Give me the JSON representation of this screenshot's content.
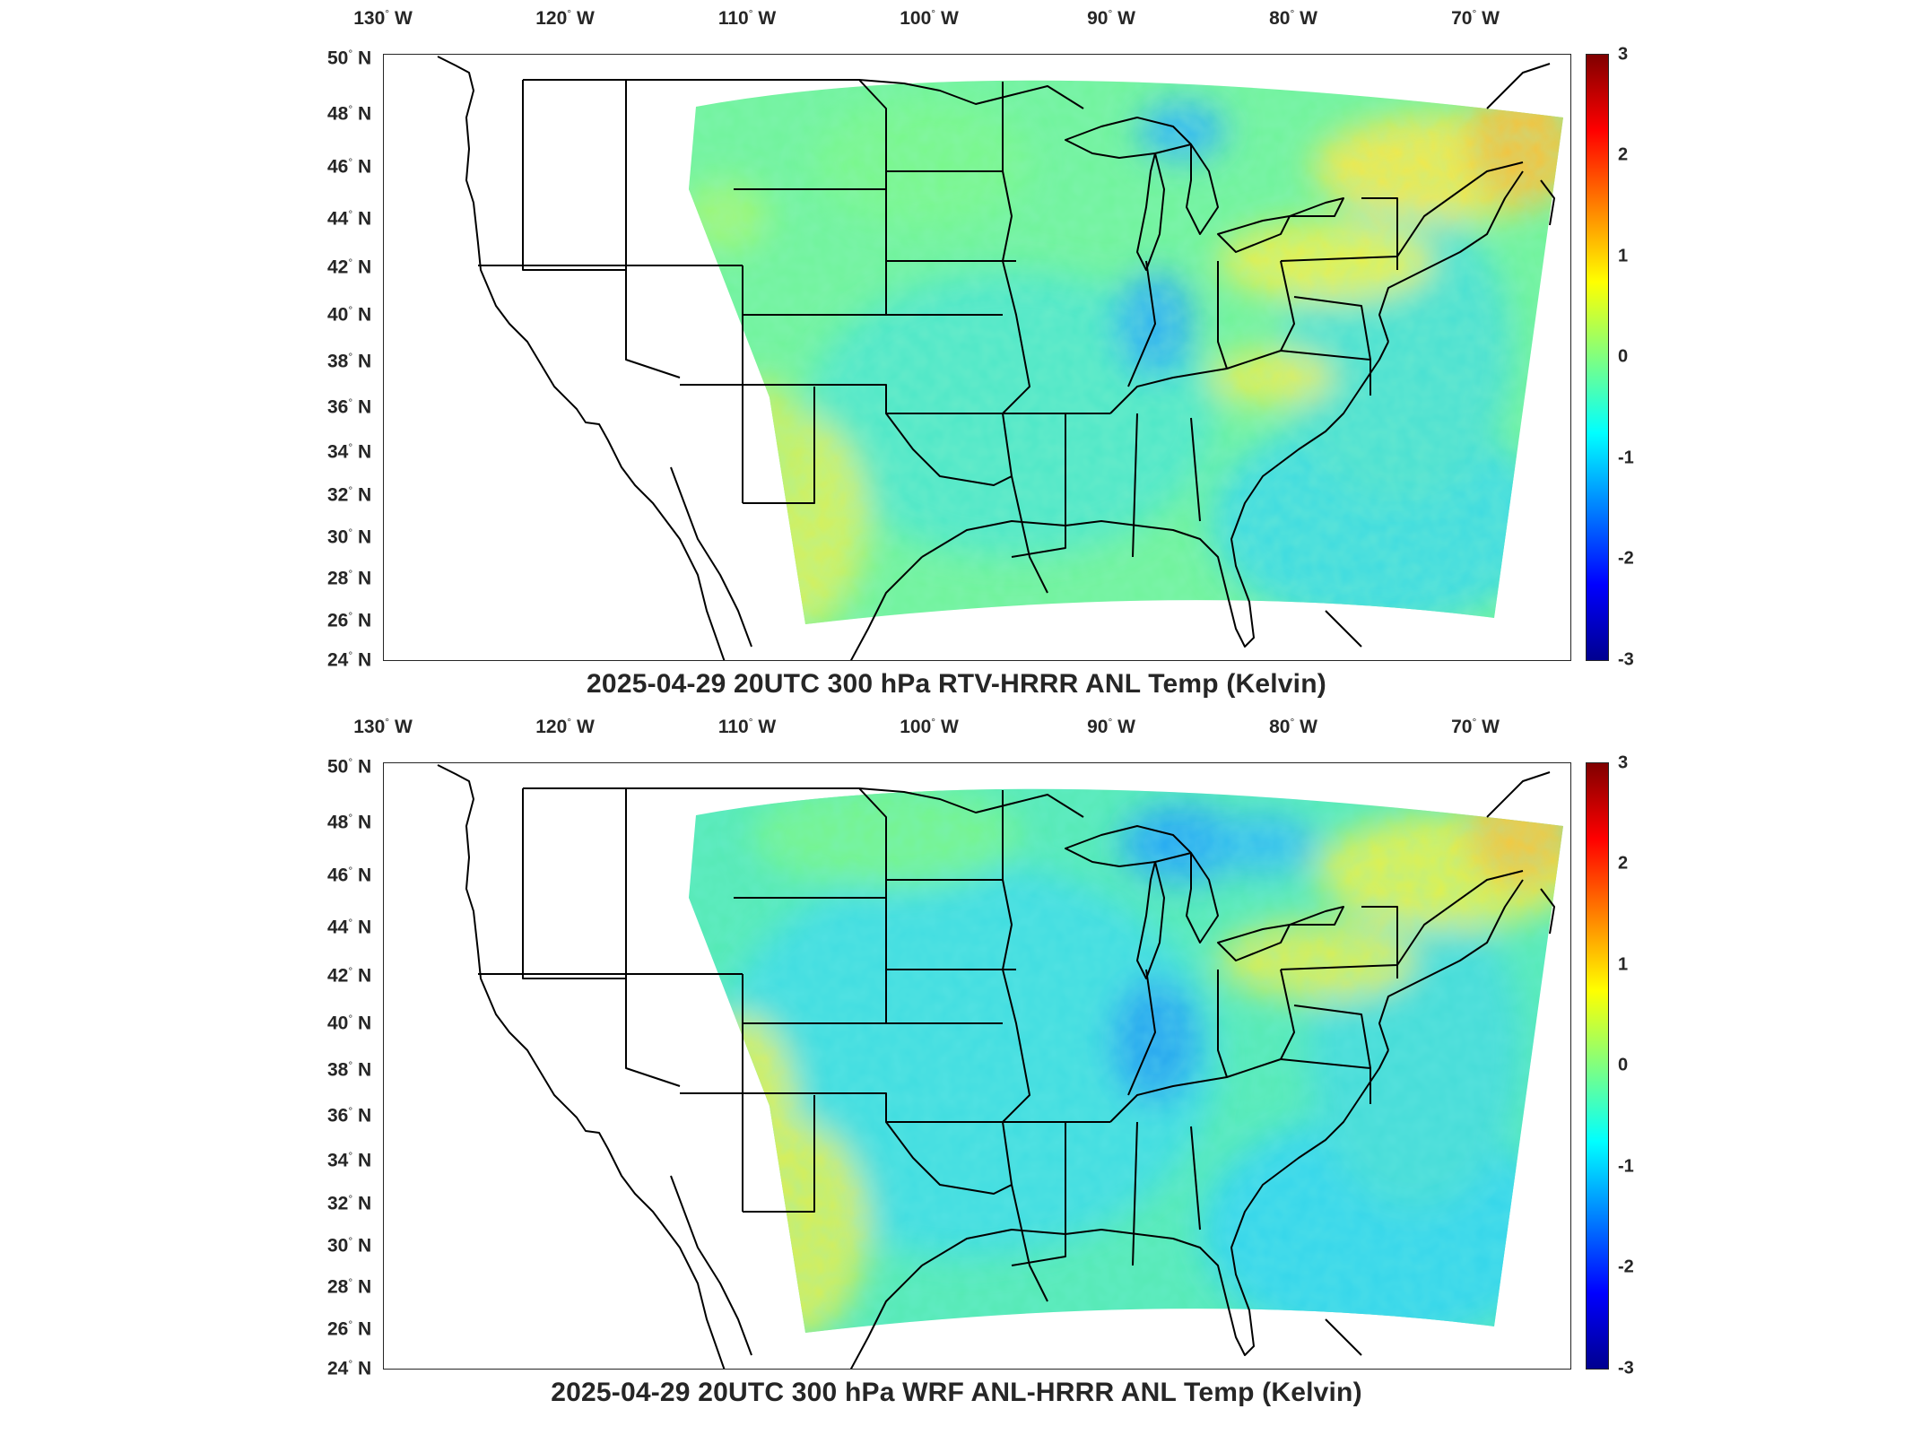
{
  "panels": [
    {
      "title": "2025-04-29 20UTC 300 hPa RTV-HRRR ANL Temp (Kelvin)",
      "lon_labels": [
        "130",
        "120",
        "110",
        "100",
        "90",
        "80",
        "70"
      ],
      "lon_suffix": "W",
      "lat_labels": [
        "50",
        "48",
        "46",
        "44",
        "42",
        "40",
        "38",
        "36",
        "34",
        "32",
        "30",
        "28",
        "26",
        "24"
      ],
      "lat_suffix": "N",
      "colorbar": {
        "ticks": [
          "3",
          "2",
          "1",
          "0",
          "-1",
          "-2",
          "-3"
        ],
        "min": -3,
        "max": 3,
        "colormap": "jet"
      }
    },
    {
      "title": "2025-04-29 20UTC 300 hPa WRF ANL-HRRR ANL Temp (Kelvin)",
      "lon_labels": [
        "130",
        "120",
        "110",
        "100",
        "90",
        "80",
        "70"
      ],
      "lon_suffix": "W",
      "lat_labels": [
        "50",
        "48",
        "46",
        "44",
        "42",
        "40",
        "38",
        "36",
        "34",
        "32",
        "30",
        "28",
        "26",
        "24"
      ],
      "lat_suffix": "N",
      "colorbar": {
        "ticks": [
          "3",
          "2",
          "1",
          "0",
          "-1",
          "-2",
          "-3"
        ],
        "min": -3,
        "max": 3,
        "colormap": "jet"
      }
    }
  ],
  "colors": {
    "frame": "#262626",
    "coast": "#000000",
    "field_base": "#7fff8a"
  }
}
